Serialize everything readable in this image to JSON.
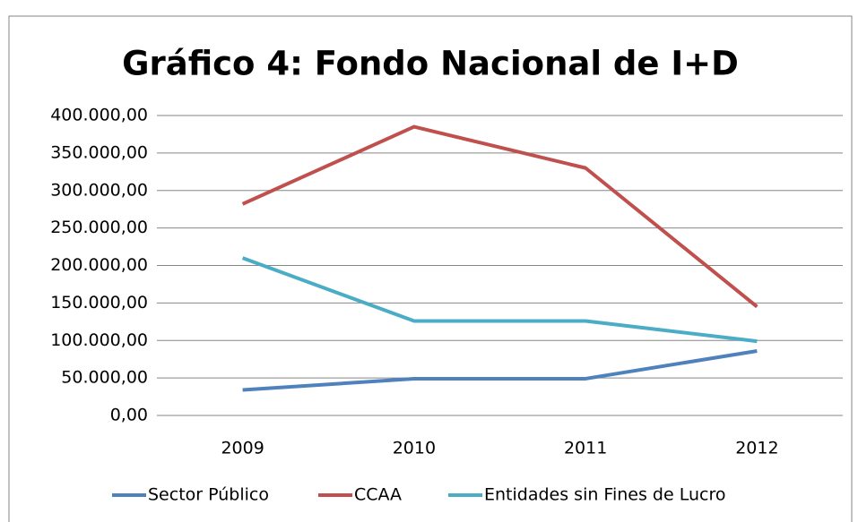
{
  "chart_data": {
    "type": "line",
    "title": "Gráfico 4: Fondo Nacional de I+D",
    "categories": [
      "2009",
      "2010",
      "2011",
      "2012"
    ],
    "series": [
      {
        "name": "Sector Público",
        "color": "#4f81bd",
        "values": [
          34000,
          49000,
          49000,
          86000
        ]
      },
      {
        "name": "CCAA",
        "color": "#c0504d",
        "values": [
          282000,
          385000,
          330000,
          145000
        ]
      },
      {
        "name": "Entidades sin Fines de Lucro",
        "color": "#4bacc6",
        "values": [
          210000,
          126000,
          126000,
          99000
        ]
      }
    ],
    "ylim": [
      0,
      400000
    ],
    "yticks": [
      {
        "value": 0,
        "label": "0,00"
      },
      {
        "value": 50000,
        "label": "50.000,00"
      },
      {
        "value": 100000,
        "label": "100.000,00"
      },
      {
        "value": 150000,
        "label": "150.000,00"
      },
      {
        "value": 200000,
        "label": "200.000,00"
      },
      {
        "value": 250000,
        "label": "250.000,00"
      },
      {
        "value": 300000,
        "label": "300.000,00"
      },
      {
        "value": 350000,
        "label": "350.000,00"
      },
      {
        "value": 400000,
        "label": "400.000,00"
      }
    ],
    "grid": true,
    "legend": "bottom"
  }
}
